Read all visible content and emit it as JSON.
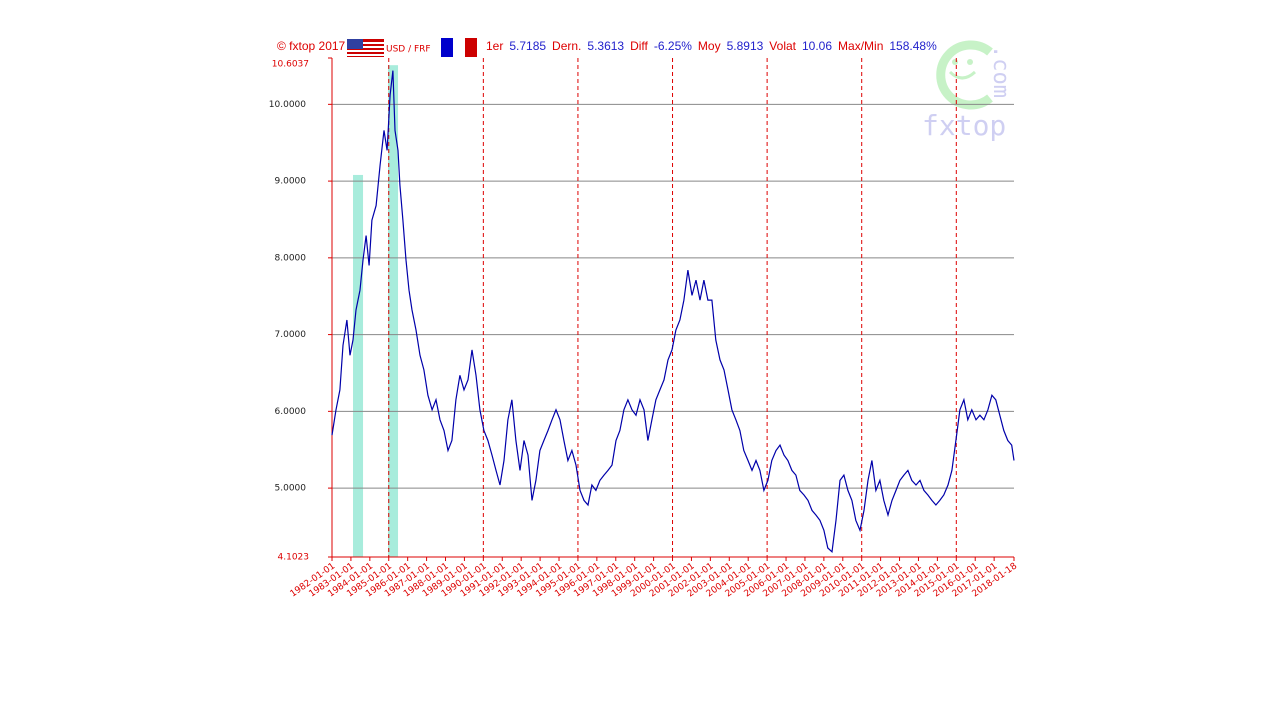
{
  "chart_data": {
    "type": "line",
    "header": {
      "copyright": "© fxtop 2017",
      "stats": [
        {
          "label": "1er",
          "value": "5.7185"
        },
        {
          "label": "Dern.",
          "value": "5.3613"
        },
        {
          "label": "Diff",
          "value": "-6.25%"
        },
        {
          "label": "Moy",
          "value": "5.8913"
        },
        {
          "label": "Volat",
          "value": "10.06"
        },
        {
          "label": "Max/Min",
          "value": "158.48%"
        }
      ]
    },
    "watermark": "fxtop",
    "watermark_suffix": ".com",
    "x": [
      1982.0,
      1982.21,
      1982.42,
      1982.58,
      1982.79,
      1982.95,
      1983.11,
      1983.27,
      1983.48,
      1983.64,
      1983.8,
      1983.96,
      1984.11,
      1984.33,
      1984.54,
      1984.75,
      1984.91,
      1985.07,
      1985.22,
      1985.33,
      1985.49,
      1985.59,
      1985.75,
      1985.91,
      1986.07,
      1986.23,
      1986.44,
      1986.65,
      1986.86,
      1987.07,
      1987.29,
      1987.5,
      1987.71,
      1987.92,
      1988.13,
      1988.34,
      1988.55,
      1988.76,
      1988.98,
      1989.19,
      1989.4,
      1989.61,
      1989.82,
      1990.03,
      1990.24,
      1990.46,
      1990.67,
      1990.88,
      1991.09,
      1991.3,
      1991.51,
      1991.72,
      1991.94,
      1992.15,
      1992.36,
      1992.57,
      1992.78,
      1992.99,
      1993.2,
      1993.42,
      1993.63,
      1993.84,
      1994.05,
      1994.26,
      1994.47,
      1994.68,
      1994.9,
      1995.11,
      1995.32,
      1995.53,
      1995.74,
      1995.95,
      1996.16,
      1996.38,
      1996.59,
      1996.8,
      1997.01,
      1997.22,
      1997.43,
      1997.64,
      1997.86,
      1998.07,
      1998.28,
      1998.49,
      1998.7,
      1998.91,
      1999.12,
      1999.33,
      1999.55,
      1999.76,
      1999.97,
      2000.18,
      2000.39,
      2000.6,
      2000.81,
      2001.03,
      2001.24,
      2001.45,
      2001.66,
      2001.87,
      2002.08,
      2002.29,
      2002.51,
      2002.72,
      2002.93,
      2003.14,
      2003.35,
      2003.56,
      2003.77,
      2003.99,
      2004.2,
      2004.41,
      2004.62,
      2004.83,
      2005.04,
      2005.25,
      2005.47,
      2005.68,
      2005.89,
      2006.1,
      2006.31,
      2006.52,
      2006.73,
      2006.95,
      2007.16,
      2007.37,
      2007.58,
      2007.79,
      2008.0,
      2008.21,
      2008.43,
      2008.64,
      2008.85,
      2009.06,
      2009.27,
      2009.48,
      2009.69,
      2009.91,
      2010.12,
      2010.33,
      2010.54,
      2010.75,
      2010.96,
      2011.17,
      2011.39,
      2011.6,
      2011.81,
      2012.02,
      2012.23,
      2012.44,
      2012.65,
      2012.87,
      2013.08,
      2013.29,
      2013.5,
      2013.71,
      2013.92,
      2014.13,
      2014.34,
      2014.56,
      2014.77,
      2014.98,
      2015.19,
      2015.4,
      2015.61,
      2015.82,
      2016.04,
      2016.25,
      2016.46,
      2016.67,
      2016.88,
      2017.09,
      2017.3,
      2017.51,
      2017.72,
      2017.93,
      2018.05
    ],
    "series": [
      {
        "name": "USD / FRF",
        "color": "#0000aa",
        "values": [
          5.69,
          6.02,
          6.28,
          6.86,
          7.19,
          6.73,
          6.93,
          7.32,
          7.58,
          7.97,
          8.29,
          7.9,
          8.49,
          8.68,
          9.21,
          9.66,
          9.4,
          10.12,
          10.44,
          9.66,
          9.4,
          8.95,
          8.49,
          7.97,
          7.58,
          7.32,
          7.06,
          6.73,
          6.54,
          6.21,
          6.02,
          6.15,
          5.89,
          5.75,
          5.49,
          5.62,
          6.15,
          6.47,
          6.28,
          6.41,
          6.8,
          6.47,
          6.02,
          5.75,
          5.62,
          5.43,
          5.23,
          5.04,
          5.36,
          5.89,
          6.15,
          5.62,
          5.23,
          5.62,
          5.43,
          4.84,
          5.1,
          5.49,
          5.62,
          5.75,
          5.89,
          6.02,
          5.89,
          5.62,
          5.36,
          5.49,
          5.3,
          4.97,
          4.84,
          4.78,
          5.04,
          4.97,
          5.1,
          5.17,
          5.23,
          5.3,
          5.62,
          5.75,
          6.02,
          6.15,
          6.02,
          5.95,
          6.15,
          6.02,
          5.62,
          5.89,
          6.15,
          6.28,
          6.41,
          6.67,
          6.8,
          7.06,
          7.19,
          7.45,
          7.84,
          7.51,
          7.71,
          7.45,
          7.71,
          7.45,
          7.45,
          6.93,
          6.67,
          6.54,
          6.28,
          6.02,
          5.89,
          5.75,
          5.49,
          5.36,
          5.23,
          5.36,
          5.23,
          4.97,
          5.1,
          5.36,
          5.49,
          5.56,
          5.43,
          5.36,
          5.23,
          5.17,
          4.97,
          4.91,
          4.84,
          4.71,
          4.65,
          4.58,
          4.45,
          4.22,
          4.17,
          4.58,
          5.1,
          5.17,
          4.97,
          4.84,
          4.58,
          4.45,
          4.71,
          5.1,
          5.36,
          4.97,
          5.1,
          4.84,
          4.65,
          4.84,
          4.97,
          5.1,
          5.17,
          5.23,
          5.1,
          5.04,
          5.1,
          4.97,
          4.91,
          4.84,
          4.78,
          4.84,
          4.91,
          5.04,
          5.23,
          5.62,
          6.02,
          6.15,
          5.89,
          6.02,
          5.89,
          5.95,
          5.89,
          6.02,
          6.21,
          6.15,
          5.95,
          5.75,
          5.62,
          5.56,
          5.36
        ]
      }
    ],
    "marker_colors": [
      "#0000cc",
      "#cc0000"
    ],
    "highlight_color": "#a8ecdc",
    "highlights": [
      {
        "x": [
          1983.11,
          1983.64
        ],
        "y": 9.08
      },
      {
        "x": [
          1984.96,
          1985.49
        ],
        "y": 10.51
      }
    ],
    "xlim": [
      1982,
      2018.05
    ],
    "ylim": [
      4.1023,
      10.6037
    ],
    "yticks": [
      {
        "value": 4.1023,
        "label": "4.1023"
      },
      {
        "value": 5,
        "label": "5.0000"
      },
      {
        "value": 6,
        "label": "6.0000"
      },
      {
        "value": 7,
        "label": "7.0000"
      },
      {
        "value": 8,
        "label": "8.0000"
      },
      {
        "value": 9,
        "label": "9.0000"
      },
      {
        "value": 10,
        "label": "10.0000"
      },
      {
        "value": 10.6037,
        "label": "10.6037"
      }
    ],
    "xticks": [
      {
        "value": 1982,
        "label": "1982-01-01"
      },
      {
        "value": 1983,
        "label": "1983-01-01"
      },
      {
        "value": 1984,
        "label": "1984-01-01"
      },
      {
        "value": 1985,
        "label": "1985-01-01"
      },
      {
        "value": 1986,
        "label": "1986-01-01"
      },
      {
        "value": 1987,
        "label": "1987-01-01"
      },
      {
        "value": 1988,
        "label": "1988-01-01"
      },
      {
        "value": 1989,
        "label": "1989-01-01"
      },
      {
        "value": 1990,
        "label": "1990-01-01"
      },
      {
        "value": 1991,
        "label": "1991-01-01"
      },
      {
        "value": 1992,
        "label": "1992-01-01"
      },
      {
        "value": 1993,
        "label": "1993-01-01"
      },
      {
        "value": 1994,
        "label": "1994-01-01"
      },
      {
        "value": 1995,
        "label": "1995-01-01"
      },
      {
        "value": 1996,
        "label": "1996-01-01"
      },
      {
        "value": 1997,
        "label": "1997-01-01"
      },
      {
        "value": 1998,
        "label": "1998-01-01"
      },
      {
        "value": 1999,
        "label": "1999-01-01"
      },
      {
        "value": 2000,
        "label": "2000-01-01"
      },
      {
        "value": 2001,
        "label": "2001-01-01"
      },
      {
        "value": 2002,
        "label": "2002-01-01"
      },
      {
        "value": 2003,
        "label": "2003-01-01"
      },
      {
        "value": 2004,
        "label": "2004-01-01"
      },
      {
        "value": 2005,
        "label": "2005-01-01"
      },
      {
        "value": 2006,
        "label": "2006-01-01"
      },
      {
        "value": 2007,
        "label": "2007-01-01"
      },
      {
        "value": 2008,
        "label": "2008-01-01"
      },
      {
        "value": 2009,
        "label": "2009-01-01"
      },
      {
        "value": 2010,
        "label": "2010-01-01"
      },
      {
        "value": 2011,
        "label": "2011-01-01"
      },
      {
        "value": 2012,
        "label": "2012-01-01"
      },
      {
        "value": 2013,
        "label": "2013-01-01"
      },
      {
        "value": 2014,
        "label": "2014-01-01"
      },
      {
        "value": 2015,
        "label": "2015-01-01"
      },
      {
        "value": 2016,
        "label": "2016-01-01"
      },
      {
        "value": 2017,
        "label": "2017-01-01"
      },
      {
        "value": 2018.05,
        "label": "2018-01-18"
      }
    ],
    "xgrid": [
      1985,
      1990,
      1995,
      2000,
      2005,
      2010,
      2015
    ],
    "grid": true
  }
}
